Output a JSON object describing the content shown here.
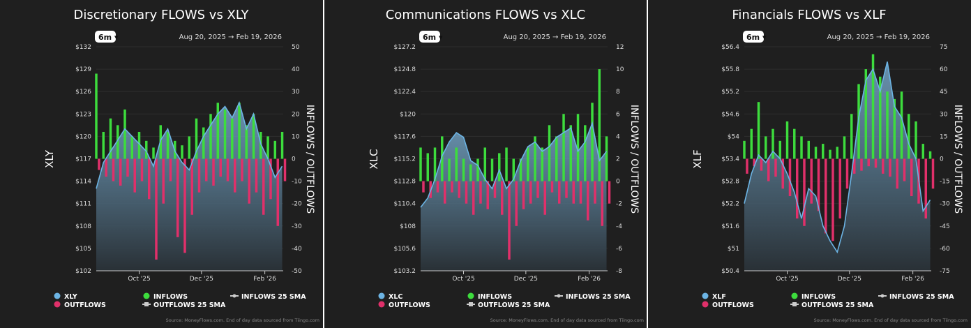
{
  "colors": {
    "price": "#6cb4e4",
    "inflows": "#3ddc3d",
    "outflows": "#e0306a",
    "background": "#1f1f1f",
    "text": "#ffffff"
  },
  "range_button": "6m",
  "date_from": "Aug 20, 2025",
  "date_arrow": "→",
  "date_to": "Feb 19, 2026",
  "source": "Source: MoneyFlows.com. End of day data sourced from Tiingo.com",
  "chart_data": [
    {
      "type": "bar+line",
      "title": "Discretionary FLOWS vs XLY",
      "ylabel": "XLY",
      "y2label": "INFLOWS / OUTFLOWS",
      "ylim": [
        102,
        132
      ],
      "y2lim": [
        -50,
        50
      ],
      "yticks": [
        "$132",
        "$129",
        "$126",
        "$123",
        "$120",
        "$117",
        "$114",
        "$111",
        "$108",
        "$105",
        "$102"
      ],
      "y2ticks": [
        "50",
        "40",
        "30",
        "20",
        "10",
        "0",
        "-10",
        "-20",
        "-30",
        "-40",
        "-50"
      ],
      "xlim": [
        "2025-08-20",
        "2026-02-19"
      ],
      "xticks": [
        {
          "date": "2025-10-01",
          "label": "Oct '25"
        },
        {
          "date": "2025-12-01",
          "label": "Dec '25"
        },
        {
          "date": "2026-02-01",
          "label": "Feb '26"
        }
      ],
      "legend": [
        "XLY",
        "OUTFLOWS",
        "INFLOWS",
        "OUTFLOWS 25 SMA",
        "INFLOWS 25 SMA"
      ],
      "dates": [
        "2025-08-20",
        "2025-08-27",
        "2025-09-03",
        "2025-09-10",
        "2025-09-17",
        "2025-09-24",
        "2025-10-01",
        "2025-10-08",
        "2025-10-15",
        "2025-10-22",
        "2025-10-29",
        "2025-11-05",
        "2025-11-12",
        "2025-11-19",
        "2025-11-26",
        "2025-12-03",
        "2025-12-10",
        "2025-12-17",
        "2025-12-24",
        "2025-12-31",
        "2026-01-07",
        "2026-01-14",
        "2026-01-21",
        "2026-01-28",
        "2026-02-04",
        "2026-02-11",
        "2026-02-18"
      ],
      "price": [
        113,
        116.5,
        118,
        119.5,
        121,
        120,
        119,
        118,
        116,
        119.5,
        121,
        118,
        116.5,
        115.5,
        118,
        120,
        121.5,
        123,
        124,
        122.5,
        124.5,
        121,
        123,
        119,
        117,
        114.5,
        116
      ],
      "inflows": [
        38,
        12,
        18,
        15,
        22,
        10,
        12,
        8,
        5,
        15,
        12,
        8,
        6,
        10,
        18,
        14,
        20,
        25,
        22,
        18,
        25,
        15,
        20,
        12,
        10,
        8,
        12
      ],
      "outflows": [
        -5,
        -8,
        -10,
        -12,
        -8,
        -15,
        -10,
        -18,
        -45,
        -20,
        -10,
        -35,
        -42,
        -25,
        -15,
        -10,
        -12,
        -8,
        -10,
        -15,
        -10,
        -20,
        -15,
        -25,
        -18,
        -30,
        -10
      ]
    },
    {
      "type": "bar+line",
      "title": "Communications FLOWS vs XLC",
      "ylabel": "XLC",
      "y2label": "INFLOWS / OUTFLOWS",
      "ylim": [
        103.2,
        127.2
      ],
      "y2lim": [
        -8,
        12
      ],
      "yticks": [
        "$127.2",
        "$124.8",
        "$122.4",
        "$120",
        "$117.6",
        "$115.2",
        "$112.8",
        "$110.4",
        "$108",
        "$105.6",
        "$103.2"
      ],
      "y2ticks": [
        "12",
        "10",
        "8",
        "6",
        "4",
        "2",
        "0",
        "-2",
        "-4",
        "-6",
        "-8"
      ],
      "xlim": [
        "2025-08-20",
        "2026-02-19"
      ],
      "xticks": [
        {
          "date": "2025-10-01",
          "label": "Oct '25"
        },
        {
          "date": "2025-12-01",
          "label": "Dec '25"
        },
        {
          "date": "2026-02-01",
          "label": "Feb '26"
        }
      ],
      "legend": [
        "XLC",
        "OUTFLOWS",
        "INFLOWS",
        "OUTFLOWS 25 SMA",
        "INFLOWS 25 SMA"
      ],
      "dates": [
        "2025-08-20",
        "2025-08-27",
        "2025-09-03",
        "2025-09-10",
        "2025-09-17",
        "2025-09-24",
        "2025-10-01",
        "2025-10-08",
        "2025-10-15",
        "2025-10-22",
        "2025-10-29",
        "2025-11-05",
        "2025-11-12",
        "2025-11-19",
        "2025-11-26",
        "2025-12-03",
        "2025-12-10",
        "2025-12-17",
        "2025-12-24",
        "2025-12-31",
        "2026-01-07",
        "2026-01-14",
        "2026-01-21",
        "2026-01-28",
        "2026-02-04",
        "2026-02-11",
        "2026-02-18"
      ],
      "price": [
        110,
        111,
        113,
        115.5,
        117,
        118,
        117.5,
        115,
        114.5,
        113,
        112,
        114,
        112,
        113,
        115,
        116.5,
        117,
        116,
        116.5,
        117.5,
        118,
        118.5,
        116,
        117,
        119,
        115,
        116
      ],
      "inflows": [
        3,
        2.5,
        3,
        4,
        2,
        3,
        2,
        1.5,
        2,
        3,
        2,
        2.5,
        3,
        2,
        2,
        3,
        4,
        3,
        5,
        4,
        6,
        5,
        6,
        5,
        7,
        10,
        4
      ],
      "outflows": [
        -1,
        -1.5,
        -1,
        -2,
        -1,
        -1.5,
        -2,
        -3,
        -2,
        -2.5,
        -1.5,
        -3,
        -7,
        -4,
        -2.5,
        -2,
        -1.5,
        -3,
        -1,
        -2,
        -1.5,
        -2,
        -2,
        -3.5,
        -2,
        -4,
        -2
      ]
    },
    {
      "type": "bar+line",
      "title": "Financials FLOWS vs XLF",
      "ylabel": "XLF",
      "y2label": "INFLOWS / OUTFLOWS",
      "ylim": [
        50.4,
        56.4
      ],
      "y2lim": [
        -75,
        75
      ],
      "yticks": [
        "$56.4",
        "$55.8",
        "$55.2",
        "$54.6",
        "$54",
        "$53.4",
        "$52.8",
        "$52.2",
        "$51.6",
        "$51",
        "$50.4"
      ],
      "y2ticks": [
        "75",
        "60",
        "45",
        "30",
        "15",
        "0",
        "-15",
        "-30",
        "-45",
        "-60",
        "-75"
      ],
      "xlim": [
        "2025-08-20",
        "2026-02-19"
      ],
      "xticks": [
        {
          "date": "2025-10-01",
          "label": "Oct '25"
        },
        {
          "date": "2025-12-01",
          "label": "Dec '25"
        },
        {
          "date": "2026-02-01",
          "label": "Feb '26"
        }
      ],
      "legend": [
        "XLF",
        "OUTFLOWS",
        "INFLOWS",
        "OUTFLOWS 25 SMA",
        "INFLOWS 25 SMA"
      ],
      "dates": [
        "2025-08-20",
        "2025-08-27",
        "2025-09-03",
        "2025-09-10",
        "2025-09-17",
        "2025-09-24",
        "2025-10-01",
        "2025-10-08",
        "2025-10-15",
        "2025-10-22",
        "2025-10-29",
        "2025-11-05",
        "2025-11-12",
        "2025-11-19",
        "2025-11-26",
        "2025-12-03",
        "2025-12-10",
        "2025-12-17",
        "2025-12-24",
        "2025-12-31",
        "2026-01-07",
        "2026-01-14",
        "2026-01-21",
        "2026-01-28",
        "2026-02-04",
        "2026-02-11",
        "2026-02-18"
      ],
      "price": [
        52.2,
        53,
        53.5,
        53.3,
        53.6,
        53.4,
        53,
        52.5,
        51.8,
        52.6,
        52.4,
        51.6,
        51.2,
        50.9,
        51.6,
        53,
        54.5,
        55.5,
        55.8,
        55.2,
        56,
        54.8,
        54.5,
        53.8,
        53.4,
        52,
        52.3
      ],
      "inflows": [
        12,
        20,
        38,
        15,
        20,
        12,
        25,
        20,
        15,
        12,
        8,
        10,
        6,
        8,
        15,
        30,
        50,
        60,
        70,
        55,
        45,
        40,
        45,
        30,
        25,
        10,
        5
      ],
      "outflows": [
        -10,
        -5,
        -8,
        -15,
        -12,
        -20,
        -25,
        -40,
        -45,
        -30,
        -35,
        -50,
        -55,
        -40,
        -20,
        -10,
        -8,
        -5,
        -6,
        -10,
        -12,
        -20,
        -15,
        -25,
        -30,
        -40,
        -20
      ]
    }
  ]
}
